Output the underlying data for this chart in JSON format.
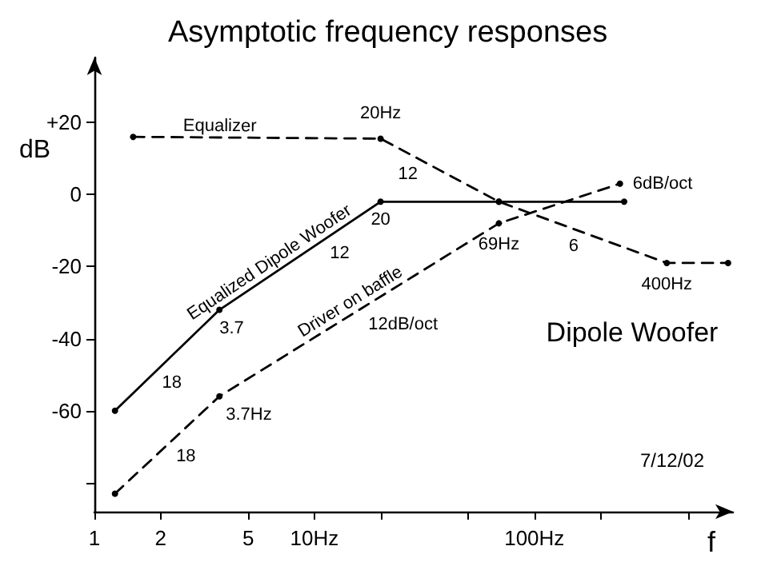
{
  "chart_data": {
    "type": "line",
    "title": "Asymptotic frequency responses",
    "xlabel": "f",
    "ylabel": "dB",
    "log": "x",
    "grid": false,
    "legend": false,
    "marker": "circle",
    "xlim": [
      1,
      800
    ],
    "ylim": [
      -88,
      38
    ],
    "xticks": [
      1,
      2,
      5,
      {
        "value": 10,
        "label": "10Hz"
      },
      {
        "value": 20,
        "label": null
      },
      {
        "value": 50,
        "label": null
      },
      {
        "value": 100,
        "label": "100Hz"
      },
      {
        "value": 200,
        "label": null
      },
      {
        "value": 500,
        "label": null
      }
    ],
    "yticks": [
      {
        "value": -80,
        "label": null
      },
      -60,
      -40,
      -20,
      0,
      {
        "value": 20,
        "label": "+20"
      }
    ],
    "series": [
      {
        "name": "Equalizer",
        "color": "#000000",
        "line_style": "dashed",
        "x": [
          1.5,
          20,
          69,
          400,
          760
        ],
        "values": [
          16,
          15.5,
          -2,
          -19,
          -19
        ]
      },
      {
        "name": "Equalized Dipole Woofer",
        "color": "#000000",
        "line_style": "solid",
        "x": [
          1.24,
          3.7,
          20,
          69,
          256
        ],
        "values": [
          -60,
          -32,
          -2,
          -2,
          -2
        ]
      },
      {
        "name": "Driver on baffle",
        "color": "#000000",
        "line_style": "dashed",
        "x": [
          1.24,
          3.7,
          69,
          245
        ],
        "values": [
          -83,
          -56,
          -8,
          3
        ]
      }
    ],
    "annotations": [
      {
        "text": "20Hz",
        "x": 20,
        "y": 15.5
      },
      {
        "text": "12",
        "x": 31,
        "y": 9.3
      },
      {
        "text": "20",
        "x": 20,
        "y": -2
      },
      {
        "text": "3.7",
        "x": 3.7,
        "y": -32
      },
      {
        "text": "69Hz",
        "x": 69,
        "y": -8
      },
      {
        "text": "6",
        "x": 167,
        "y": -10.6
      },
      {
        "text": "400Hz",
        "x": 400,
        "y": -19
      },
      {
        "text": "6dB/oct",
        "x": 245,
        "y": 3
      },
      {
        "text": "12",
        "x": 11,
        "y": -12.6
      },
      {
        "text": "18",
        "x": 1.9,
        "y": -49
      },
      {
        "text": "3.7Hz",
        "x": 3.7,
        "y": -56
      },
      {
        "text": "18",
        "x": 2.2,
        "y": -69
      },
      {
        "text": "12dB/oct",
        "x": 20,
        "y": -28.3
      },
      "Dipole Woofer",
      "7/12/02"
    ]
  }
}
